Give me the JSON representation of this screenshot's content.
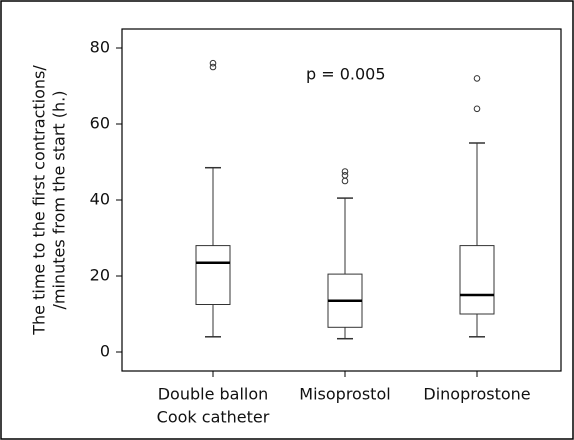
{
  "chart_data": {
    "type": "box",
    "ylabel": [
      "The time to the first contractions/",
      "/minutes from the start  (h.)"
    ],
    "annotation": "p = 0.005",
    "categories": [
      [
        "Double ballon",
        "Cook catheter"
      ],
      [
        "Misoprostol"
      ],
      [
        "Dinoprostone"
      ]
    ],
    "series": [
      {
        "min": 4,
        "q1": 12.5,
        "median": 23.5,
        "q3": 28,
        "max": 48.5,
        "outliers": [
          75,
          76
        ]
      },
      {
        "min": 3.5,
        "q1": 6.5,
        "median": 13.5,
        "q3": 20.5,
        "max": 40.5,
        "outliers": [
          45,
          46.5,
          47.5
        ]
      },
      {
        "min": 4,
        "q1": 10,
        "median": 15,
        "q3": 28,
        "max": 55,
        "outliers": [
          64,
          72
        ]
      }
    ],
    "color": "#333333",
    "ylim": [
      -5,
      85
    ],
    "yticks": [
      0,
      20,
      40,
      60,
      80
    ]
  }
}
